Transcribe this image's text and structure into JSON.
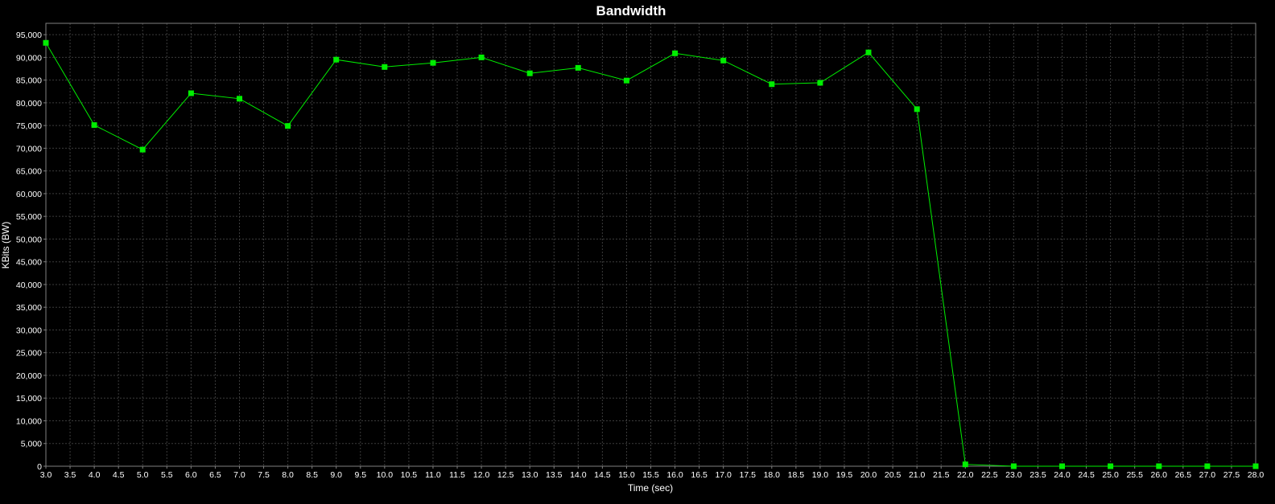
{
  "chart_data": {
    "type": "line",
    "title": "Bandwidth",
    "xlabel": "Time (sec)",
    "ylabel": "KBits (BW)",
    "xlim": [
      3.0,
      28.0
    ],
    "ylim": [
      0,
      97500
    ],
    "x_ticks": [
      "3.0",
      "3.5",
      "4.0",
      "4.5",
      "5.0",
      "5.5",
      "6.0",
      "6.5",
      "7.0",
      "7.5",
      "8.0",
      "8.5",
      "9.0",
      "9.5",
      "10.0",
      "10.5",
      "11.0",
      "11.5",
      "12.0",
      "12.5",
      "13.0",
      "13.5",
      "14.0",
      "14.5",
      "15.0",
      "15.5",
      "16.0",
      "16.5",
      "17.0",
      "17.5",
      "18.0",
      "18.5",
      "19.0",
      "19.5",
      "20.0",
      "20.5",
      "21.0",
      "21.5",
      "22.0",
      "22.5",
      "23.0",
      "23.5",
      "24.0",
      "24.5",
      "25.0",
      "25.5",
      "26.0",
      "26.5",
      "27.0",
      "27.5",
      "28.0"
    ],
    "y_ticks": [
      "0",
      "5,000",
      "10,000",
      "15,000",
      "20,000",
      "25,000",
      "30,000",
      "35,000",
      "40,000",
      "45,000",
      "50,000",
      "55,000",
      "60,000",
      "65,000",
      "70,000",
      "75,000",
      "80,000",
      "85,000",
      "90,000",
      "95,000"
    ],
    "grid": true,
    "series": [
      {
        "color": "#00ee00",
        "points": [
          {
            "x": 3,
            "y": 93200
          },
          {
            "x": 4,
            "y": 75100
          },
          {
            "x": 5,
            "y": 69700
          },
          {
            "x": 6,
            "y": 82100
          },
          {
            "x": 7,
            "y": 80900
          },
          {
            "x": 8,
            "y": 74900
          },
          {
            "x": 9,
            "y": 89500
          },
          {
            "x": 10,
            "y": 87900
          },
          {
            "x": 11,
            "y": 88800
          },
          {
            "x": 12,
            "y": 90000
          },
          {
            "x": 13,
            "y": 86500
          },
          {
            "x": 14,
            "y": 87700
          },
          {
            "x": 15,
            "y": 84900
          },
          {
            "x": 16,
            "y": 90900
          },
          {
            "x": 17,
            "y": 89300
          },
          {
            "x": 18,
            "y": 84100
          },
          {
            "x": 19,
            "y": 84400
          },
          {
            "x": 20,
            "y": 91100
          },
          {
            "x": 21,
            "y": 78600
          },
          {
            "x": 22,
            "y": 400
          },
          {
            "x": 23,
            "y": 0
          },
          {
            "x": 24,
            "y": 0
          },
          {
            "x": 25,
            "y": 0
          },
          {
            "x": 26,
            "y": 0
          },
          {
            "x": 27,
            "y": 0
          },
          {
            "x": 28,
            "y": 0
          }
        ]
      }
    ]
  },
  "colors": {
    "background": "#000000",
    "plot_border": "#808080",
    "grid": "#3c3c3c",
    "text": "#ffffff"
  }
}
